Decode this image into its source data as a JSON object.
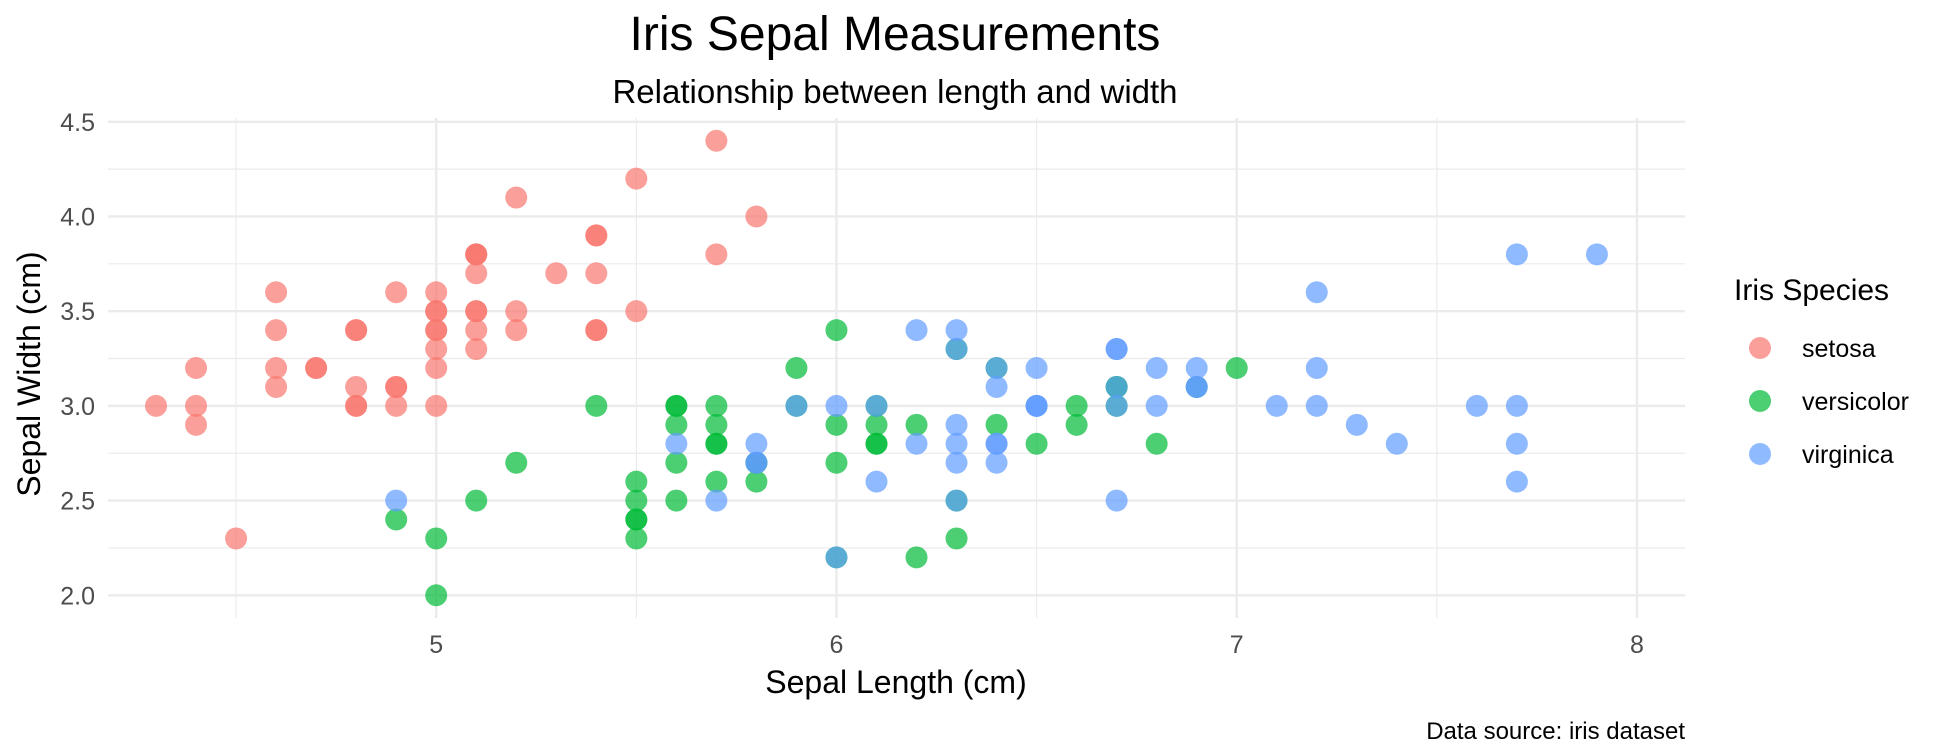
{
  "chart_data": {
    "type": "scatter",
    "title": "Iris Sepal Measurements",
    "subtitle": "Relationship between length and width",
    "xlabel": "Sepal Length (cm)",
    "ylabel": "Sepal Width (cm)",
    "caption": "Data source: iris dataset",
    "xlim": [
      4.18,
      8.12
    ],
    "ylim": [
      1.88,
      4.52
    ],
    "x_ticks": [
      5,
      6,
      7,
      8
    ],
    "x_tick_labels": [
      "5",
      "6",
      "7",
      "8"
    ],
    "y_ticks": [
      2.0,
      2.5,
      3.0,
      3.5,
      4.0,
      4.5
    ],
    "y_tick_labels": [
      "2.0",
      "2.5",
      "3.0",
      "3.5",
      "4.0",
      "4.5"
    ],
    "grid": true,
    "legend": {
      "title": "Iris Species",
      "position": "right"
    },
    "series": [
      {
        "name": "setosa",
        "color": "#F8766D",
        "points": [
          [
            5.1,
            3.5
          ],
          [
            4.9,
            3.0
          ],
          [
            4.7,
            3.2
          ],
          [
            4.6,
            3.1
          ],
          [
            5.0,
            3.6
          ],
          [
            5.4,
            3.9
          ],
          [
            4.6,
            3.4
          ],
          [
            5.0,
            3.4
          ],
          [
            4.4,
            2.9
          ],
          [
            4.9,
            3.1
          ],
          [
            5.4,
            3.7
          ],
          [
            4.8,
            3.4
          ],
          [
            4.8,
            3.0
          ],
          [
            4.3,
            3.0
          ],
          [
            5.8,
            4.0
          ],
          [
            5.7,
            4.4
          ],
          [
            5.4,
            3.9
          ],
          [
            5.1,
            3.5
          ],
          [
            5.7,
            3.8
          ],
          [
            5.1,
            3.8
          ],
          [
            5.4,
            3.4
          ],
          [
            5.1,
            3.7
          ],
          [
            4.6,
            3.6
          ],
          [
            5.1,
            3.3
          ],
          [
            4.8,
            3.4
          ],
          [
            5.0,
            3.0
          ],
          [
            5.0,
            3.4
          ],
          [
            5.2,
            3.5
          ],
          [
            5.2,
            3.4
          ],
          [
            4.7,
            3.2
          ],
          [
            4.8,
            3.1
          ],
          [
            5.4,
            3.4
          ],
          [
            5.2,
            4.1
          ],
          [
            5.5,
            4.2
          ],
          [
            4.9,
            3.1
          ],
          [
            5.0,
            3.2
          ],
          [
            5.5,
            3.5
          ],
          [
            4.9,
            3.6
          ],
          [
            4.4,
            3.0
          ],
          [
            5.1,
            3.4
          ],
          [
            5.0,
            3.5
          ],
          [
            4.5,
            2.3
          ],
          [
            4.4,
            3.2
          ],
          [
            5.0,
            3.5
          ],
          [
            5.1,
            3.8
          ],
          [
            4.8,
            3.0
          ],
          [
            5.1,
            3.8
          ],
          [
            4.6,
            3.2
          ],
          [
            5.3,
            3.7
          ],
          [
            5.0,
            3.3
          ]
        ]
      },
      {
        "name": "versicolor",
        "color": "#00BA38",
        "points": [
          [
            7.0,
            3.2
          ],
          [
            6.4,
            3.2
          ],
          [
            6.9,
            3.1
          ],
          [
            5.5,
            2.3
          ],
          [
            6.5,
            2.8
          ],
          [
            5.7,
            2.8
          ],
          [
            6.3,
            3.3
          ],
          [
            4.9,
            2.4
          ],
          [
            6.6,
            2.9
          ],
          [
            5.2,
            2.7
          ],
          [
            5.0,
            2.0
          ],
          [
            5.9,
            3.0
          ],
          [
            6.0,
            2.2
          ],
          [
            6.1,
            2.9
          ],
          [
            5.6,
            2.9
          ],
          [
            6.7,
            3.1
          ],
          [
            5.6,
            3.0
          ],
          [
            5.8,
            2.7
          ],
          [
            6.2,
            2.2
          ],
          [
            5.6,
            2.5
          ],
          [
            5.9,
            3.2
          ],
          [
            6.1,
            2.8
          ],
          [
            6.3,
            2.5
          ],
          [
            6.1,
            2.8
          ],
          [
            6.4,
            2.9
          ],
          [
            6.6,
            3.0
          ],
          [
            6.8,
            2.8
          ],
          [
            6.7,
            3.0
          ],
          [
            6.0,
            2.9
          ],
          [
            5.7,
            2.6
          ],
          [
            5.5,
            2.4
          ],
          [
            5.5,
            2.4
          ],
          [
            5.8,
            2.7
          ],
          [
            6.0,
            2.7
          ],
          [
            5.4,
            3.0
          ],
          [
            6.0,
            3.4
          ],
          [
            6.7,
            3.1
          ],
          [
            6.3,
            2.3
          ],
          [
            5.6,
            3.0
          ],
          [
            5.5,
            2.5
          ],
          [
            5.5,
            2.6
          ],
          [
            6.1,
            3.0
          ],
          [
            5.8,
            2.6
          ],
          [
            5.0,
            2.3
          ],
          [
            5.6,
            2.7
          ],
          [
            5.7,
            3.0
          ],
          [
            5.7,
            2.9
          ],
          [
            6.2,
            2.9
          ],
          [
            5.1,
            2.5
          ],
          [
            5.7,
            2.8
          ]
        ]
      },
      {
        "name": "virginica",
        "color": "#619CFF",
        "points": [
          [
            6.3,
            3.3
          ],
          [
            5.8,
            2.7
          ],
          [
            7.1,
            3.0
          ],
          [
            6.3,
            2.9
          ],
          [
            6.5,
            3.0
          ],
          [
            7.6,
            3.0
          ],
          [
            4.9,
            2.5
          ],
          [
            7.3,
            2.9
          ],
          [
            6.7,
            2.5
          ],
          [
            7.2,
            3.6
          ],
          [
            6.5,
            3.2
          ],
          [
            6.4,
            2.7
          ],
          [
            6.8,
            3.0
          ],
          [
            5.7,
            2.5
          ],
          [
            5.8,
            2.8
          ],
          [
            6.4,
            3.2
          ],
          [
            6.5,
            3.0
          ],
          [
            7.7,
            3.8
          ],
          [
            7.7,
            2.6
          ],
          [
            6.0,
            2.2
          ],
          [
            6.9,
            3.2
          ],
          [
            5.6,
            2.8
          ],
          [
            7.7,
            2.8
          ],
          [
            6.3,
            2.7
          ],
          [
            6.7,
            3.3
          ],
          [
            7.2,
            3.2
          ],
          [
            6.2,
            2.8
          ],
          [
            6.1,
            3.0
          ],
          [
            6.4,
            2.8
          ],
          [
            7.2,
            3.0
          ],
          [
            7.4,
            2.8
          ],
          [
            7.9,
            3.8
          ],
          [
            6.4,
            2.8
          ],
          [
            6.3,
            2.8
          ],
          [
            6.1,
            2.6
          ],
          [
            7.7,
            3.0
          ],
          [
            6.3,
            3.4
          ],
          [
            6.4,
            3.1
          ],
          [
            6.0,
            3.0
          ],
          [
            6.9,
            3.1
          ],
          [
            6.7,
            3.1
          ],
          [
            6.9,
            3.1
          ],
          [
            5.8,
            2.7
          ],
          [
            6.8,
            3.2
          ],
          [
            6.7,
            3.3
          ],
          [
            6.7,
            3.0
          ],
          [
            6.3,
            2.5
          ],
          [
            6.5,
            3.0
          ],
          [
            6.2,
            3.4
          ],
          [
            5.9,
            3.0
          ]
        ]
      }
    ]
  }
}
